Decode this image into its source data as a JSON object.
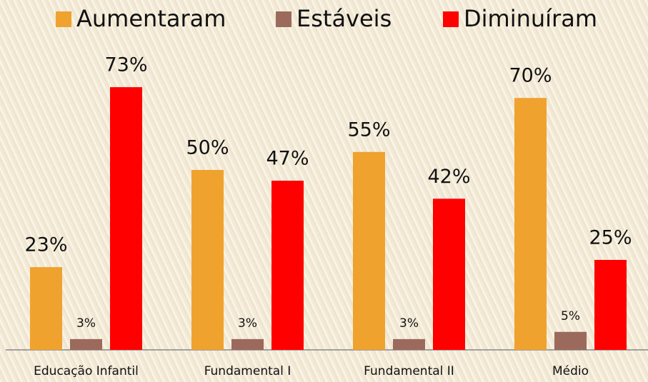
{
  "chart_data": {
    "type": "bar",
    "categories": [
      "Educação Infantil",
      "Fundamental I",
      "Fundamental II",
      "Médio"
    ],
    "series": [
      {
        "name": "Aumentaram",
        "color": "#f0a22e",
        "values": [
          23,
          50,
          55,
          70
        ],
        "value_labels": [
          "23%",
          "50%",
          "55%",
          "70%"
        ]
      },
      {
        "name": "Estáveis",
        "color": "#9c6a5c",
        "values": [
          3,
          3,
          3,
          5
        ],
        "value_labels": [
          "3%",
          "3%",
          "3%",
          "5%"
        ]
      },
      {
        "name": "Diminuíram",
        "color": "#ff0000",
        "values": [
          73,
          47,
          42,
          25
        ],
        "value_labels": [
          "73%",
          "47%",
          "42%",
          "25%"
        ]
      }
    ],
    "legend": "top"
  }
}
